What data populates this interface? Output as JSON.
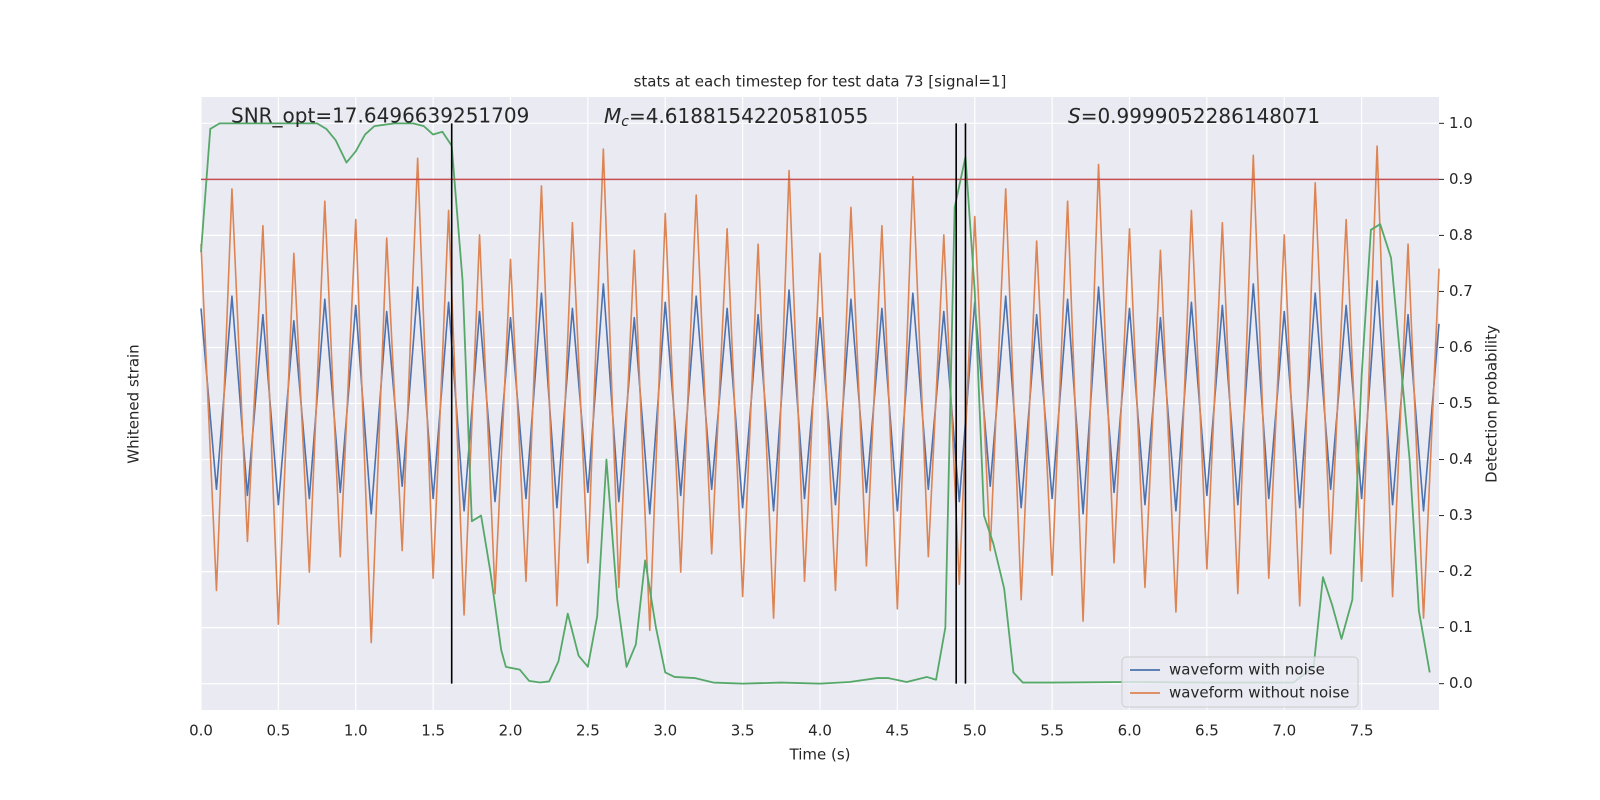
{
  "chart_data": {
    "type": "line",
    "title": "stats at each timestep for test data 73 [signal=1]",
    "xlabel": "Time (s)",
    "ylabel": "Whitened strain",
    "y2label": "Detection probability",
    "xlim": [
      0,
      8
    ],
    "xticks": [
      {
        "value": 0,
        "label": "0.0"
      },
      0.5,
      {
        "value": 1,
        "label": "1.0"
      },
      1.5,
      {
        "value": 2,
        "label": "2.0"
      },
      2.5,
      {
        "value": 3,
        "label": "3.0"
      },
      3.5,
      {
        "value": 4,
        "label": "4.0"
      },
      4.5,
      {
        "value": 5,
        "label": "5.0"
      },
      5.5,
      {
        "value": 6,
        "label": "6.0"
      },
      6.5,
      {
        "value": 7,
        "label": "7.0"
      },
      7.5
    ],
    "ylim": [
      -1,
      1
    ],
    "y2lim": [
      -0.047,
      1.047
    ],
    "y2ticks": [
      {
        "value": 0,
        "label": "0.0"
      },
      0.1,
      0.2,
      0.3,
      0.4,
      0.5,
      0.6,
      0.7,
      0.8,
      0.9,
      {
        "value": 1,
        "label": "1.0"
      }
    ],
    "grid": true,
    "legend": "lower right",
    "x": [
      0,
      0.1,
      0.2,
      0.3,
      0.4,
      0.5,
      0.6,
      0.7,
      0.8,
      0.9,
      1,
      1.1,
      1.2,
      1.3,
      1.4,
      1.5,
      1.6,
      1.7,
      1.8,
      1.9,
      2,
      2.1,
      2.2,
      2.3,
      2.4,
      2.5,
      2.6,
      2.7,
      2.8,
      2.9,
      3,
      3.1,
      3.2,
      3.3,
      3.4,
      3.5,
      3.6,
      3.7,
      3.8,
      3.9,
      4,
      4.1,
      4.2,
      4.3,
      4.4,
      4.5,
      4.6,
      4.7,
      4.8,
      4.9,
      5,
      5.1,
      5.2,
      5.3,
      5.4,
      5.5,
      5.6,
      5.7,
      5.8,
      5.9,
      6,
      6.1,
      6.2,
      6.3,
      6.4,
      6.5,
      6.6,
      6.7,
      6.8,
      6.9,
      7,
      7.1,
      7.2,
      7.3,
      7.4,
      7.5,
      7.6,
      7.7,
      7.8,
      7.9,
      8
    ],
    "series": [
      {
        "name": "waveform with noise",
        "color": "#4c72b0",
        "values": [
          0.31,
          -0.28,
          0.35,
          -0.3,
          0.29,
          -0.33,
          0.27,
          -0.31,
          0.34,
          -0.29,
          0.32,
          -0.36,
          0.3,
          -0.27,
          0.38,
          -0.31,
          0.33,
          -0.35,
          0.3,
          -0.32,
          0.28,
          -0.31,
          0.36,
          -0.34,
          0.31,
          -0.29,
          0.39,
          -0.32,
          0.28,
          -0.36,
          0.33,
          -0.3,
          0.35,
          -0.28,
          0.31,
          -0.34,
          0.29,
          -0.35,
          0.37,
          -0.31,
          0.28,
          -0.33,
          0.34,
          -0.29,
          0.31,
          -0.35,
          0.36,
          -0.28,
          0.3,
          -0.32,
          0.33,
          -0.27,
          0.35,
          -0.34,
          0.29,
          -0.31,
          0.34,
          -0.36,
          0.38,
          -0.29,
          0.31,
          -0.33,
          0.28,
          -0.35,
          0.33,
          -0.3,
          0.32,
          -0.33,
          0.39,
          -0.31,
          0.3,
          -0.34,
          0.36,
          -0.28,
          0.32,
          -0.31,
          0.4,
          -0.33,
          0.29,
          -0.35,
          0.26
        ]
      },
      {
        "name": "waveform without noise",
        "color": "#dd8452",
        "values": [
          0.52,
          -0.61,
          0.7,
          -0.45,
          0.58,
          -0.72,
          0.49,
          -0.55,
          0.66,
          -0.5,
          0.6,
          -0.78,
          0.54,
          -0.48,
          0.8,
          -0.57,
          0.63,
          -0.69,
          0.55,
          -0.62,
          0.47,
          -0.58,
          0.71,
          -0.66,
          0.59,
          -0.52,
          0.83,
          -0.6,
          0.5,
          -0.74,
          0.62,
          -0.55,
          0.68,
          -0.49,
          0.57,
          -0.63,
          0.52,
          -0.7,
          0.76,
          -0.58,
          0.49,
          -0.61,
          0.64,
          -0.53,
          0.58,
          -0.67,
          0.74,
          -0.5,
          0.55,
          -0.59,
          0.61,
          -0.48,
          0.7,
          -0.64,
          0.53,
          -0.56,
          0.66,
          -0.71,
          0.78,
          -0.52,
          0.57,
          -0.6,
          0.5,
          -0.68,
          0.63,
          -0.54,
          0.59,
          -0.62,
          0.81,
          -0.57,
          0.55,
          -0.66,
          0.72,
          -0.49,
          0.6,
          -0.58,
          0.84,
          -0.63,
          0.52,
          -0.7,
          0.44
        ]
      }
    ],
    "probability": {
      "color": "#55a868",
      "axis": "y2",
      "x": [
        0,
        0.06,
        0.12,
        0.25,
        0.5,
        0.75,
        0.81,
        0.87,
        0.94,
        1.0,
        1.06,
        1.12,
        1.25,
        1.37,
        1.44,
        1.5,
        1.56,
        1.62,
        1.69,
        1.75,
        1.81,
        1.87,
        1.94,
        1.97,
        2.06,
        2.12,
        2.19,
        2.25,
        2.31,
        2.37,
        2.44,
        2.5,
        2.56,
        2.62,
        2.69,
        2.75,
        2.81,
        2.87,
        2.94,
        3.0,
        3.06,
        3.19,
        3.31,
        3.5,
        3.75,
        4.0,
        4.19,
        4.37,
        4.44,
        4.56,
        4.69,
        4.75,
        4.81,
        4.87,
        4.94,
        5.0,
        5.06,
        5.12,
        5.19,
        5.25,
        5.31,
        5.5,
        6.0,
        6.5,
        7.06,
        7.19,
        7.25,
        7.31,
        7.37,
        7.44,
        7.5,
        7.56,
        7.62,
        7.69,
        7.81,
        7.87,
        7.94
      ],
      "values": [
        0.77,
        0.99,
        1.0,
        1.0,
        1.0,
        1.0,
        0.99,
        0.97,
        0.93,
        0.95,
        0.98,
        0.995,
        1.0,
        1.0,
        0.995,
        0.98,
        0.985,
        0.96,
        0.72,
        0.29,
        0.3,
        0.2,
        0.06,
        0.03,
        0.025,
        0.005,
        0.002,
        0.004,
        0.04,
        0.125,
        0.05,
        0.03,
        0.12,
        0.4,
        0.15,
        0.03,
        0.07,
        0.22,
        0.1,
        0.02,
        0.012,
        0.01,
        0.002,
        0.0,
        0.002,
        0.0,
        0.003,
        0.01,
        0.01,
        0.003,
        0.012,
        0.007,
        0.1,
        0.85,
        0.94,
        0.7,
        0.3,
        0.25,
        0.17,
        0.02,
        0.002,
        0.002,
        0.003,
        0.002,
        0.002,
        0.03,
        0.19,
        0.14,
        0.08,
        0.15,
        0.55,
        0.81,
        0.82,
        0.76,
        0.4,
        0.13,
        0.02
      ]
    },
    "threshold": {
      "value": 0.9,
      "color": "#c44e52"
    },
    "vlines": {
      "x": [
        1.62,
        4.88,
        4.94
      ],
      "color": "#000000"
    },
    "annotations": {
      "snr": "SNR_opt=17.6496639251709",
      "mc": {
        "symbol": "M",
        "sub": "c",
        "text": "=4.6188154220581055"
      },
      "s": {
        "symbol": "S",
        "text": "=0.9999052286148071"
      }
    }
  }
}
